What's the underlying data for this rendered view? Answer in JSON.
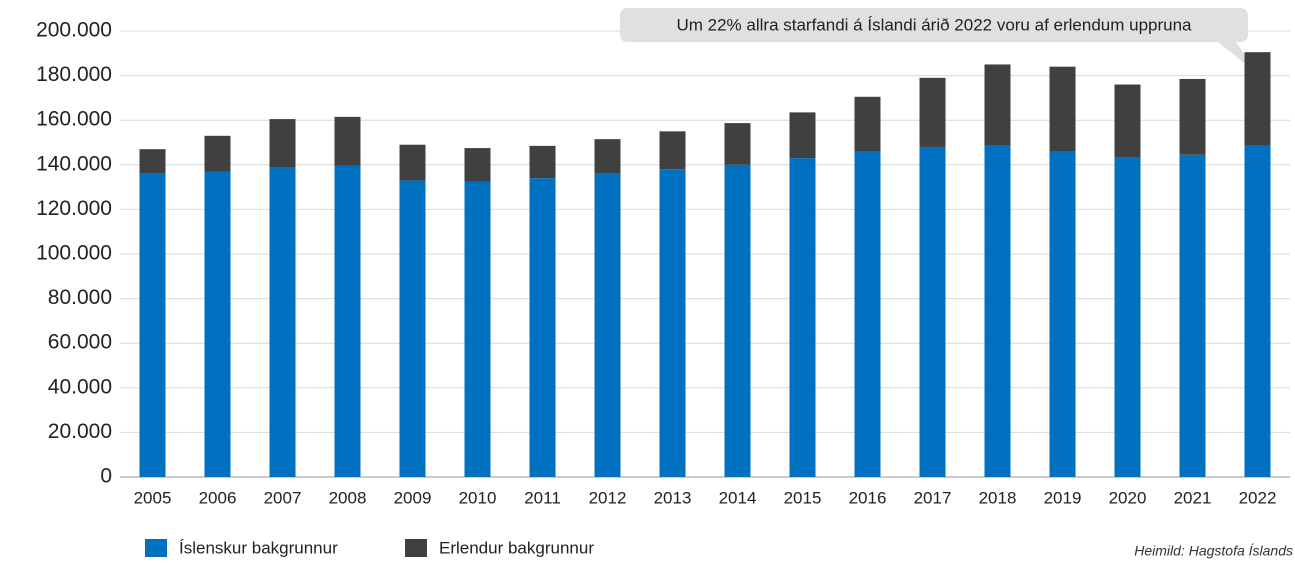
{
  "chart_data": {
    "type": "stacked-bar",
    "annotation": "Um 22% allra starfandi á Íslandi árið 2022 voru af erlendum uppruna",
    "source": "Heimild: Hagstofa Íslands",
    "categories": [
      "2005",
      "2006",
      "2007",
      "2008",
      "2009",
      "2010",
      "2011",
      "2012",
      "2013",
      "2014",
      "2015",
      "2016",
      "2017",
      "2018",
      "2019",
      "2020",
      "2021",
      "2022"
    ],
    "series": [
      {
        "name": "Íslenskur bakgrunnur",
        "color": "#0070c0",
        "values": [
          136000,
          137000,
          139000,
          139500,
          133000,
          132500,
          134000,
          136000,
          138000,
          140000,
          143000,
          146000,
          148000,
          148500,
          146000,
          143500,
          144500,
          148500
        ]
      },
      {
        "name": "Erlendur bakgrunnur",
        "color": "#404040",
        "values": [
          11000,
          16000,
          21500,
          22000,
          16000,
          15000,
          14500,
          15500,
          17000,
          18700,
          20500,
          24500,
          31000,
          36500,
          38000,
          32500,
          34000,
          42000
        ]
      }
    ],
    "ylim": [
      0,
      200000
    ],
    "yticks": [
      0,
      {
        "value": 20000,
        "label": "20.000"
      },
      {
        "value": 40000,
        "label": "40.000"
      },
      {
        "value": 60000,
        "label": "60.000"
      },
      {
        "value": 80000,
        "label": "80.000"
      },
      {
        "value": 100000,
        "label": "100.000"
      },
      {
        "value": 120000,
        "label": "120.000"
      },
      {
        "value": 140000,
        "label": "140.000"
      },
      {
        "value": 160000,
        "label": "160.000"
      },
      {
        "value": 180000,
        "label": "180.000"
      },
      {
        "value": 200000,
        "label": "200.000"
      }
    ],
    "grid": true
  }
}
